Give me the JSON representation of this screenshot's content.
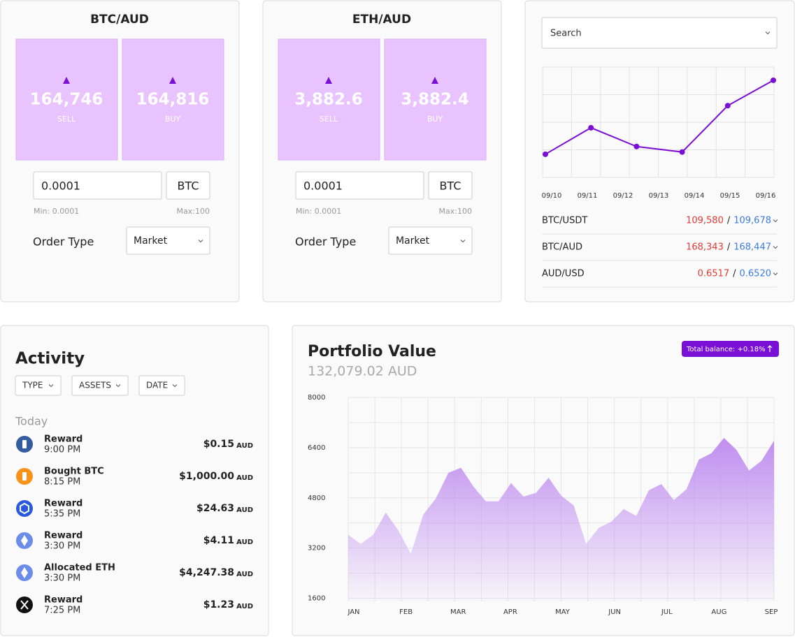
{
  "trade_panels": [
    {
      "pair": "BTC/AUD",
      "sell": "164,746",
      "sell_label": "SELL",
      "buy": "164,816",
      "buy_label": "BUY",
      "amount": "0.0001",
      "unit": "BTC",
      "min": "Min: 0.0001",
      "max": "Max:100",
      "order_type_label": "Order Type",
      "order_type": "Market"
    },
    {
      "pair": "ETH/AUD",
      "sell": "3,882.6",
      "sell_label": "SELL",
      "buy": "3,882.4",
      "buy_label": "BUY",
      "amount": "0.0001",
      "unit": "BTC",
      "min": "Min: 0.0001",
      "max": "Max:100",
      "order_type_label": "Order Type",
      "order_type": "Market"
    }
  ],
  "rates": {
    "search": "Search",
    "separator": "/",
    "chart_data": {
      "type": "line",
      "xticks": [
        "09/10",
        "09/11",
        "09/12",
        "09/13",
        "09/14",
        "09/15",
        "09/16"
      ],
      "values": [
        21,
        45,
        28,
        23,
        65,
        88
      ],
      "ylim": [
        0,
        100
      ],
      "color": "#7a0fd6"
    },
    "rows": [
      {
        "pair": "BTC/USDT",
        "bid": "109,580",
        "ask": "109,678"
      },
      {
        "pair": "BTC/AUD",
        "bid": "168,343",
        "ask": "168,447"
      },
      {
        "pair": "AUD/USD",
        "bid": "0.6517",
        "ask": "0.6520"
      }
    ]
  },
  "activity": {
    "title": "Activity",
    "filters": [
      "TYPE",
      "ASSETS",
      "DATE"
    ],
    "group": "Today",
    "items": [
      {
        "title": "Reward",
        "time": "9:00 PM",
        "amount": "$0.15",
        "currency": "AUD"
      },
      {
        "title": "Bought BTC",
        "time": "8:15 PM",
        "amount": "$1,000.00",
        "currency": "AUD"
      },
      {
        "title": "Reward",
        "time": "5:35 PM",
        "amount": "$24.63",
        "currency": "AUD"
      },
      {
        "title": "Reward",
        "time": "3:30 PM",
        "amount": "$4.11",
        "currency": "AUD"
      },
      {
        "title": "Allocated ETH",
        "time": "3:30 PM",
        "amount": "$4,247.38",
        "currency": "AUD"
      },
      {
        "title": "Reward",
        "time": "7:25 PM",
        "amount": "$1.23",
        "currency": "AUD"
      }
    ]
  },
  "portfolio": {
    "title": "Portfolio Value",
    "balance": "132,079.02 AUD",
    "badge": "Total balance: +0.18%",
    "chart_data": {
      "type": "area",
      "xticks": [
        "JAN",
        "FEB",
        "MAR",
        "APR",
        "MAY",
        "JUN",
        "JUL",
        "AUG",
        "SEP"
      ],
      "values": [
        3620,
        3330,
        3620,
        4330,
        3760,
        3020,
        4270,
        4780,
        5600,
        5760,
        5160,
        4690,
        4690,
        5270,
        4840,
        4960,
        5440,
        4870,
        4560,
        3330,
        3840,
        4040,
        4440,
        4220,
        5040,
        5240,
        4730,
        5070,
        6020,
        6220,
        6710,
        6330,
        5670,
        5980,
        6620
      ],
      "ylim": [
        1500,
        8000
      ],
      "yticks": [
        1600,
        3200,
        4800,
        6400,
        8000
      ],
      "color": "#c08ef0",
      "grid": true
    }
  }
}
